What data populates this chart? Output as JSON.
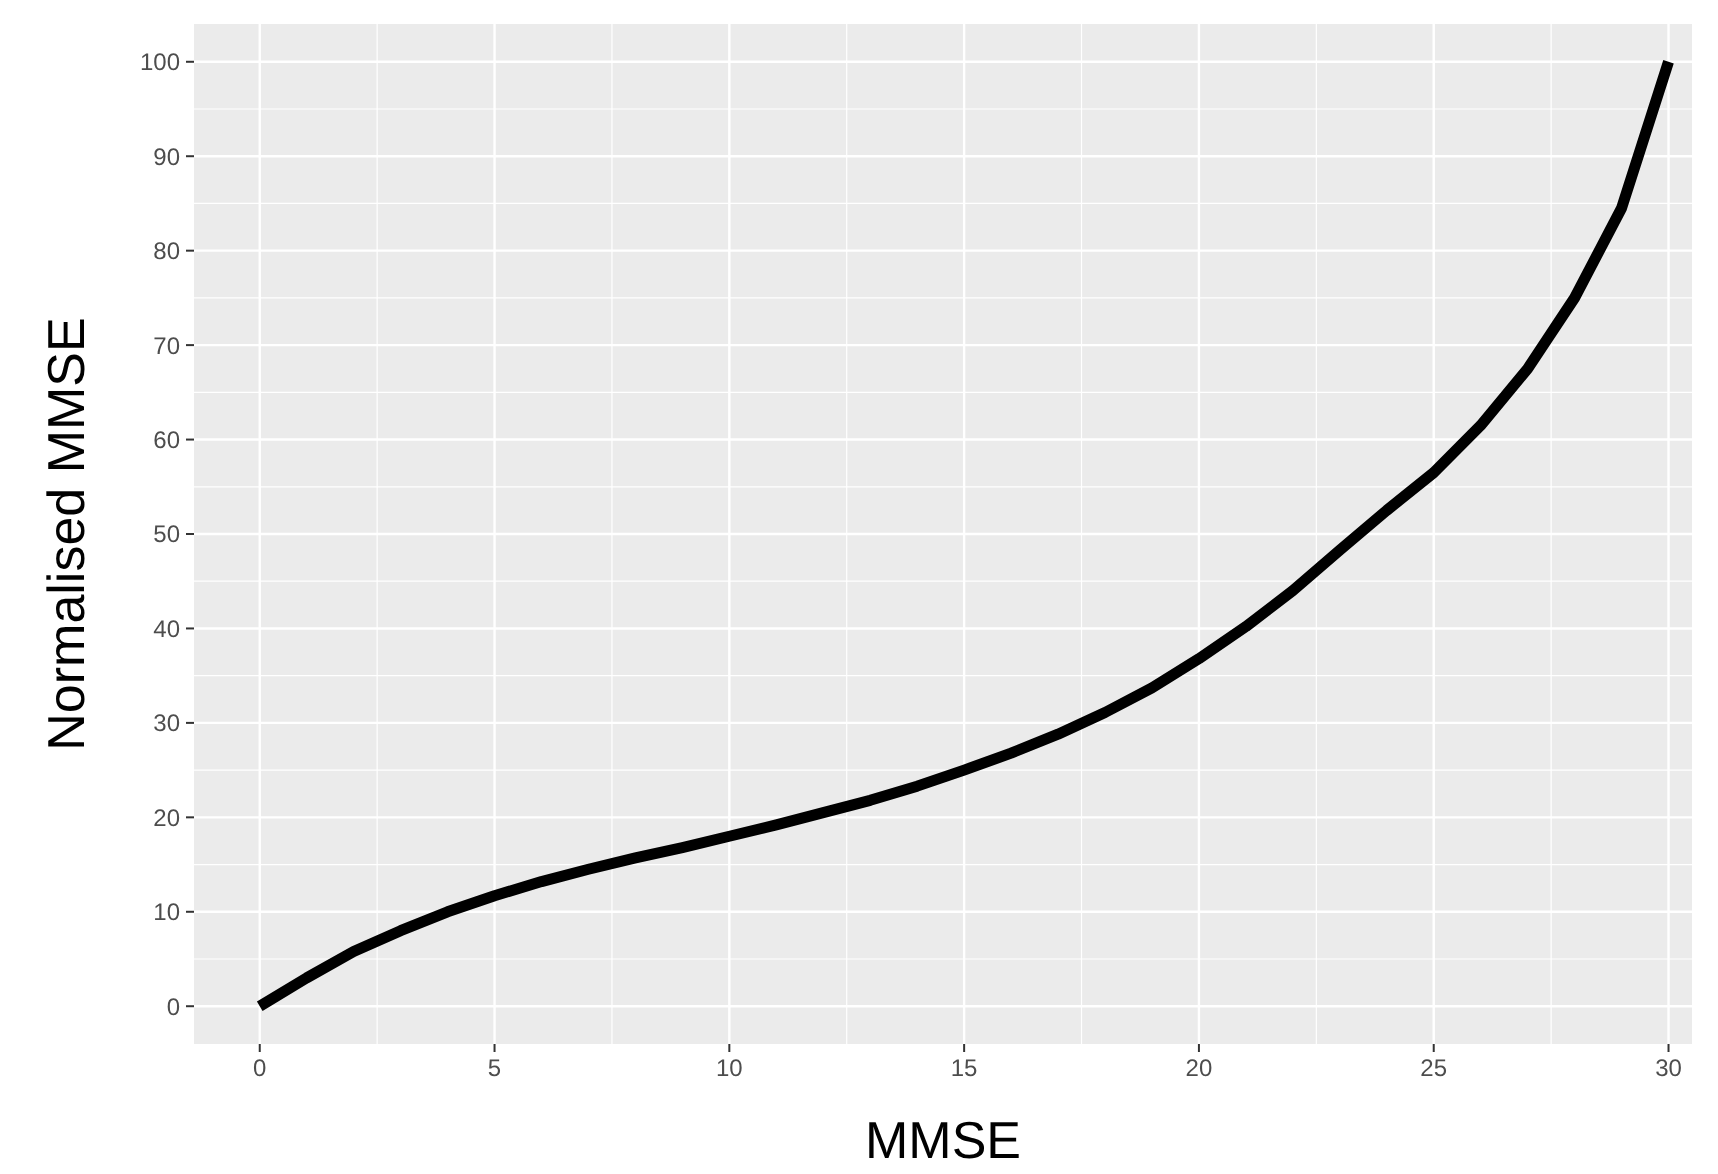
{
  "chart_data": {
    "type": "line",
    "xlabel": "MMSE",
    "ylabel": "Normalised MMSE",
    "x": [
      0,
      1,
      2,
      3,
      4,
      5,
      6,
      7,
      8,
      9,
      10,
      11,
      12,
      13,
      14,
      15,
      16,
      17,
      18,
      19,
      20,
      21,
      22,
      23,
      24,
      25,
      26,
      27,
      28,
      29,
      30
    ],
    "series": [
      {
        "color": "#000000",
        "values": [
          0,
          3,
          5.8,
          8,
          10,
          11.7,
          13.2,
          14.5,
          15.7,
          16.8,
          18,
          19.2,
          20.5,
          21.8,
          23.3,
          25,
          26.8,
          28.8,
          31.1,
          33.7,
          36.8,
          40.2,
          44,
          48.3,
          52.5,
          56.5,
          61.5,
          67.5,
          75,
          84.5,
          100
        ]
      }
    ],
    "xlim": [
      -1.4,
      30.5
    ],
    "ylim": [
      -4,
      104
    ],
    "xticks": [
      0,
      5,
      10,
      15,
      20,
      25,
      30
    ],
    "yticks": [
      0,
      10,
      20,
      30,
      40,
      50,
      60,
      70,
      80,
      90,
      100
    ],
    "grid": true,
    "marker": "none",
    "line_style": "solid"
  }
}
